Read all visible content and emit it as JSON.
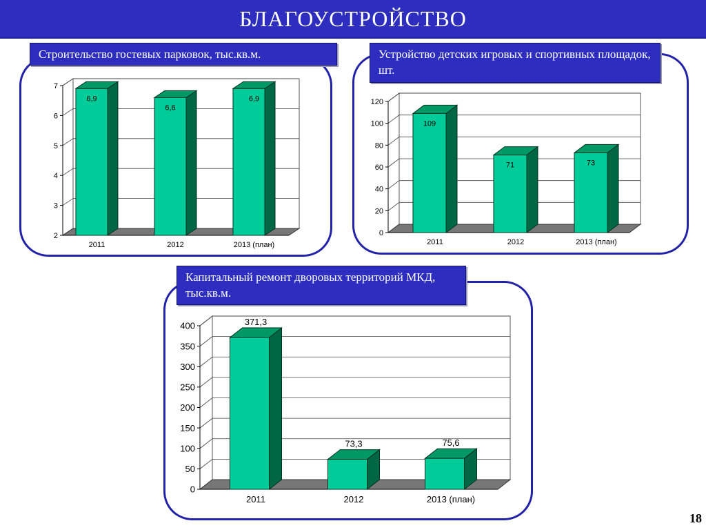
{
  "page": {
    "title": "БЛАГОУСТРОЙСТВО",
    "page_number": "18",
    "colors": {
      "title_bar": "#2d2dbf",
      "frame_border": "#2222a8",
      "bar_front": "#00cc99",
      "bar_side": "#006644",
      "bar_top": "#009966",
      "floor": "#777777"
    }
  },
  "chart_data": [
    {
      "type": "bar",
      "title": "Строительство гостевых парковок, тыс.кв.м.",
      "categories": [
        "2011",
        "2012",
        "2013 (план)"
      ],
      "values": [
        6.9,
        6.6,
        6.9
      ],
      "value_labels": [
        "6,9",
        "6,6",
        "6,9"
      ],
      "yticks": [
        "2",
        "3",
        "4",
        "5",
        "6",
        "7"
      ],
      "ylim": [
        2,
        7
      ],
      "grid": true,
      "three_d": true
    },
    {
      "type": "bar",
      "title": "Устройство детских игровых и спортивных площадок, шт.",
      "categories": [
        "2011",
        "2012",
        "2013 (план)"
      ],
      "values": [
        109,
        71,
        73
      ],
      "value_labels": [
        "109",
        "71",
        "73"
      ],
      "yticks": [
        "0",
        "20",
        "40",
        "60",
        "80",
        "100",
        "120"
      ],
      "ylim": [
        0,
        120
      ],
      "grid": true,
      "three_d": true
    },
    {
      "type": "bar",
      "title": "Капитальный ремонт дворовых территорий МКД, тыс.кв.м.",
      "categories": [
        "2011",
        "2012",
        "2013 (план)"
      ],
      "values": [
        371.3,
        73.3,
        75.6
      ],
      "value_labels": [
        "371,3",
        "73,3",
        "75,6"
      ],
      "yticks": [
        "0",
        "50",
        "100",
        "150",
        "200",
        "250",
        "300",
        "350",
        "400"
      ],
      "ylim": [
        0,
        400
      ],
      "grid": true,
      "three_d": true
    }
  ]
}
